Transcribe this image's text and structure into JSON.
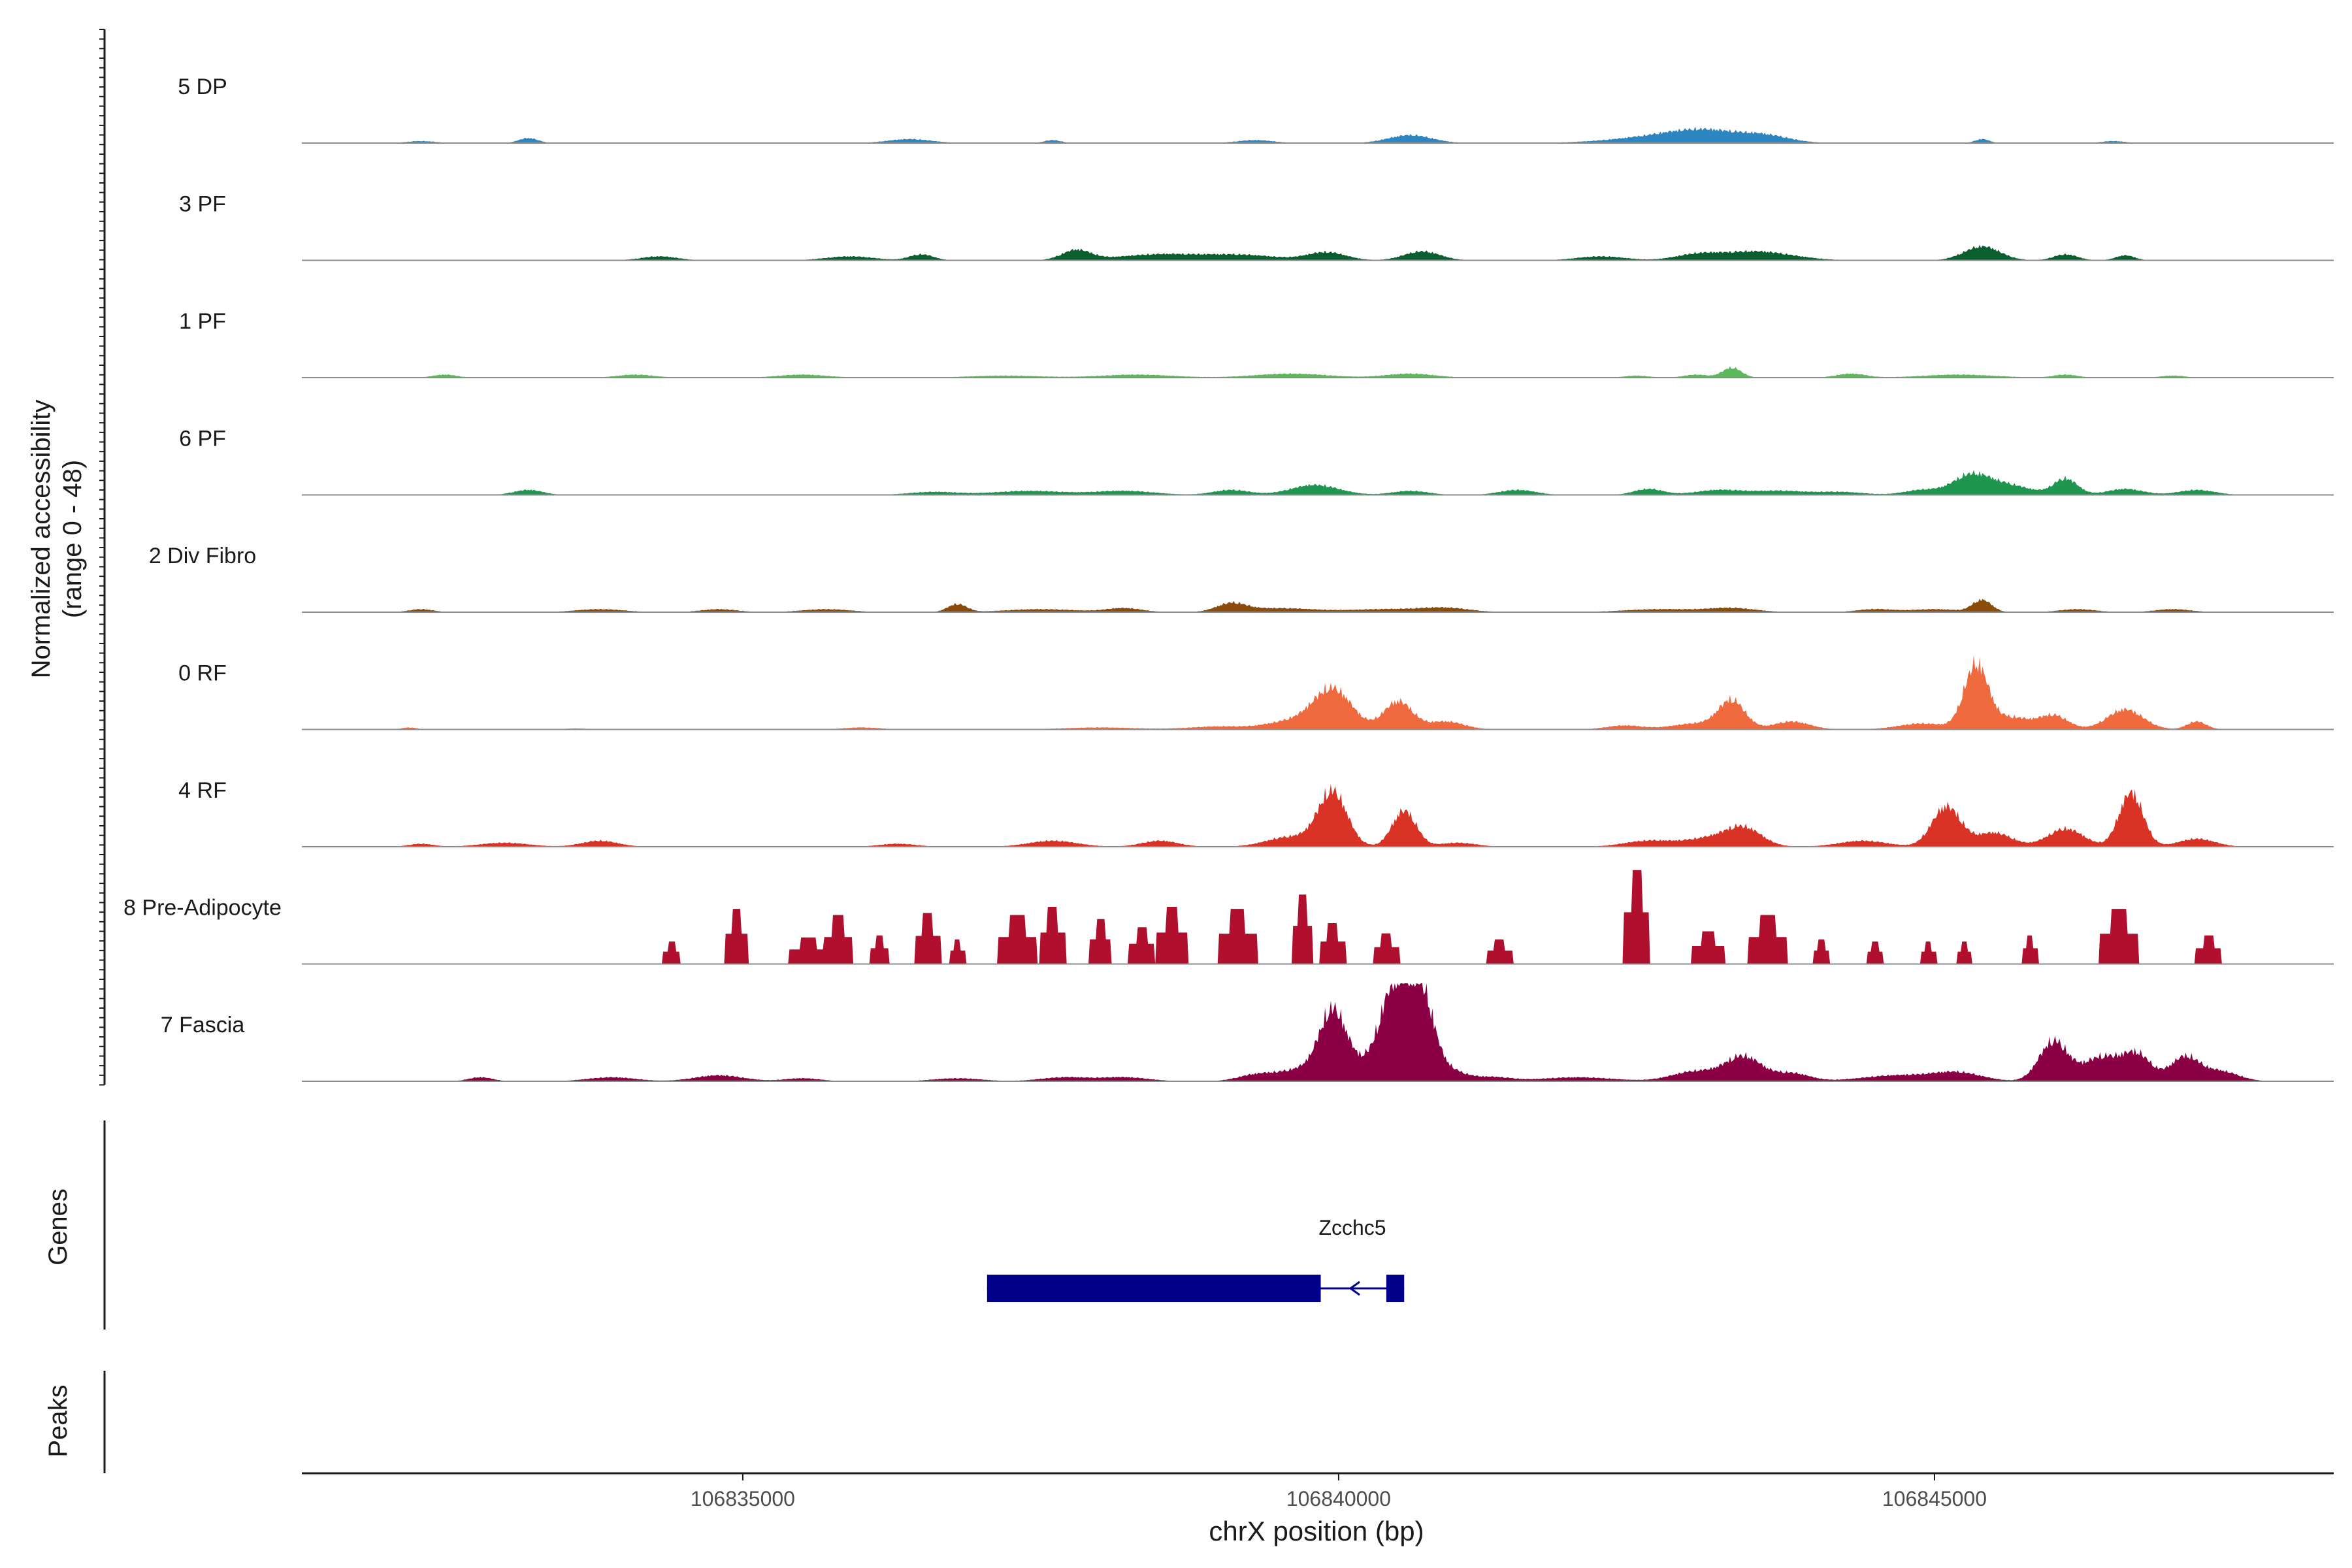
{
  "chart_data": {
    "type": "area",
    "title": "",
    "xlabel": "chrX position (bp)",
    "ylabel_line1": "Normalized accessibility",
    "ylabel_line2": "(range 0 - 48)",
    "y_range": [
      0,
      48
    ],
    "xlim": [
      106831300,
      106848350
    ],
    "x_ticks": [
      106835000,
      106840000,
      106845000
    ],
    "x_tick_labels": [
      "106835000",
      "106840000",
      "106845000"
    ],
    "genes_label": "Genes",
    "peaks_label": "Peaks",
    "gene": {
      "name": "Zcchc5",
      "strand": "-",
      "exons": [
        [
          106837050,
          106839850
        ],
        [
          106840400,
          106840550
        ]
      ],
      "color": "#00008B"
    },
    "series": [
      {
        "name": "5 DP",
        "color": "#2E86C1",
        "peaks": [
          [
            106832300,
            120,
            1
          ],
          [
            106833200,
            80,
            2.5
          ],
          [
            106836400,
            180,
            2
          ],
          [
            106837600,
            70,
            1.5
          ],
          [
            106839300,
            150,
            1.5
          ],
          [
            106840600,
            180,
            4
          ],
          [
            106842700,
            400,
            3
          ],
          [
            106843100,
            300,
            5
          ],
          [
            106843600,
            200,
            3
          ],
          [
            106845400,
            60,
            2
          ],
          [
            106846500,
            100,
            1
          ]
        ]
      },
      {
        "name": "3 PF",
        "color": "#0B5E2E",
        "peaks": [
          [
            106834300,
            150,
            2
          ],
          [
            106835900,
            200,
            2
          ],
          [
            106836500,
            100,
            3
          ],
          [
            106837800,
            120,
            5
          ],
          [
            106838500,
            350,
            3
          ],
          [
            106839200,
            300,
            2.5
          ],
          [
            106839900,
            160,
            4
          ],
          [
            106840700,
            150,
            4.5
          ],
          [
            106842200,
            200,
            2
          ],
          [
            106843000,
            180,
            2.5
          ],
          [
            106843500,
            300,
            4.5
          ],
          [
            106845400,
            150,
            7
          ],
          [
            106846100,
            100,
            3
          ],
          [
            106846600,
            80,
            2.5
          ]
        ]
      },
      {
        "name": "1 PF",
        "color": "#5DB85B",
        "peaks": [
          [
            106832500,
            100,
            1.5
          ],
          [
            106834100,
            150,
            1.5
          ],
          [
            106835500,
            200,
            1.5
          ],
          [
            106837200,
            300,
            1
          ],
          [
            106838300,
            300,
            1.5
          ],
          [
            106839600,
            300,
            2
          ],
          [
            106840600,
            200,
            2
          ],
          [
            106842500,
            100,
            1
          ],
          [
            106843000,
            100,
            1.5
          ],
          [
            106843300,
            80,
            5
          ],
          [
            106844300,
            120,
            2
          ],
          [
            106845200,
            300,
            1.5
          ],
          [
            106846100,
            100,
            1.5
          ],
          [
            106847000,
            100,
            1
          ]
        ]
      },
      {
        "name": "6 PF",
        "color": "#1E9650",
        "peaks": [
          [
            106833200,
            120,
            2.5
          ],
          [
            106836600,
            200,
            1.5
          ],
          [
            106837400,
            300,
            2
          ],
          [
            106838200,
            250,
            2
          ],
          [
            106839100,
            150,
            2.5
          ],
          [
            106839800,
            200,
            5
          ],
          [
            106840600,
            150,
            2
          ],
          [
            106841500,
            150,
            2.5
          ],
          [
            106842600,
            120,
            3
          ],
          [
            106843200,
            200,
            2.5
          ],
          [
            106843700,
            200,
            2
          ],
          [
            106844200,
            200,
            1.5
          ],
          [
            106844900,
            150,
            2.5
          ],
          [
            106845300,
            150,
            9
          ],
          [
            106845600,
            200,
            5
          ],
          [
            106846100,
            100,
            8
          ],
          [
            106846600,
            150,
            3
          ],
          [
            106847200,
            150,
            2.5
          ]
        ]
      },
      {
        "name": "2 Div Fibro",
        "color": "#8B4B0B",
        "peaks": [
          [
            106832300,
            100,
            1.5
          ],
          [
            106833800,
            200,
            1.5
          ],
          [
            106834800,
            150,
            1.5
          ],
          [
            106835700,
            200,
            1.5
          ],
          [
            106836800,
            80,
            4
          ],
          [
            106837500,
            300,
            1.5
          ],
          [
            106838200,
            150,
            2
          ],
          [
            106839100,
            120,
            4
          ],
          [
            106839500,
            300,
            2
          ],
          [
            106840400,
            300,
            1.5
          ],
          [
            106840900,
            200,
            2
          ],
          [
            106842700,
            300,
            1.5
          ],
          [
            106843300,
            200,
            2
          ],
          [
            106844500,
            150,
            1.5
          ],
          [
            106845000,
            200,
            1.5
          ],
          [
            106845400,
            80,
            6
          ],
          [
            106846200,
            150,
            1.5
          ],
          [
            106847000,
            150,
            1.5
          ]
        ]
      },
      {
        "name": "0 RF",
        "color": "#F06A40",
        "peaks": [
          [
            106832200,
            60,
            1
          ],
          [
            106833600,
            100,
            0.5
          ],
          [
            106836000,
            150,
            1
          ],
          [
            106838000,
            300,
            1
          ],
          [
            106839000,
            250,
            1.5
          ],
          [
            106839950,
            160,
            20
          ],
          [
            106839600,
            200,
            4
          ],
          [
            106840500,
            120,
            14
          ],
          [
            106840900,
            150,
            4
          ],
          [
            106842400,
            150,
            2
          ],
          [
            106843000,
            200,
            3
          ],
          [
            106843300,
            110,
            14
          ],
          [
            106843800,
            150,
            4
          ],
          [
            106844900,
            200,
            3
          ],
          [
            106845350,
            100,
            32
          ],
          [
            106845650,
            150,
            6
          ],
          [
            106846000,
            120,
            7
          ],
          [
            106846600,
            150,
            10
          ],
          [
            106847200,
            80,
            4
          ]
        ]
      },
      {
        "name": "4 RF",
        "color": "#D93326",
        "peaks": [
          [
            106832300,
            100,
            1.5
          ],
          [
            106833000,
            200,
            2
          ],
          [
            106833800,
            150,
            3
          ],
          [
            106836300,
            150,
            1.5
          ],
          [
            106837600,
            200,
            3
          ],
          [
            106838500,
            150,
            3
          ],
          [
            106839600,
            200,
            5
          ],
          [
            106839950,
            120,
            27
          ],
          [
            106840550,
            100,
            18
          ],
          [
            106841000,
            150,
            2
          ],
          [
            106842600,
            200,
            3
          ],
          [
            106843100,
            200,
            4
          ],
          [
            106843400,
            150,
            9
          ],
          [
            106844400,
            200,
            3
          ],
          [
            106845100,
            120,
            20
          ],
          [
            106845500,
            150,
            7
          ],
          [
            106846100,
            150,
            9
          ],
          [
            106846650,
            100,
            27
          ],
          [
            106847200,
            150,
            4
          ]
        ]
      },
      {
        "name": "8 Pre-Adipocyte",
        "color": "#B0102E",
        "blocky": true,
        "peaks": [
          [
            106834400,
            70,
            11
          ],
          [
            106834950,
            90,
            27
          ],
          [
            106835550,
            150,
            13
          ],
          [
            106835800,
            110,
            24
          ],
          [
            106836150,
            70,
            14
          ],
          [
            106836550,
            100,
            25
          ],
          [
            106836800,
            60,
            12
          ],
          [
            106837300,
            150,
            24
          ],
          [
            106837600,
            100,
            28
          ],
          [
            106838000,
            80,
            22
          ],
          [
            106838350,
            100,
            18
          ],
          [
            106838600,
            120,
            28
          ],
          [
            106839150,
            150,
            27
          ],
          [
            106839700,
            80,
            34
          ],
          [
            106839950,
            100,
            20
          ],
          [
            106840400,
            100,
            15
          ],
          [
            106841350,
            100,
            12
          ],
          [
            106842500,
            100,
            46
          ],
          [
            106843100,
            130,
            16
          ],
          [
            106843600,
            150,
            24
          ],
          [
            106844050,
            60,
            12
          ],
          [
            106844500,
            60,
            11
          ],
          [
            106844950,
            60,
            11
          ],
          [
            106845250,
            60,
            11
          ],
          [
            106845800,
            60,
            14
          ],
          [
            106846650,
            60,
            11
          ],
          [
            106846550,
            150,
            27
          ],
          [
            106847300,
            100,
            14
          ]
        ]
      },
      {
        "name": "7 Fascia",
        "color": "#8B0045",
        "peaks": [
          [
            106832800,
            100,
            2
          ],
          [
            106833900,
            200,
            2
          ],
          [
            106834800,
            200,
            3
          ],
          [
            106835500,
            150,
            1.5
          ],
          [
            106836800,
            200,
            1.5
          ],
          [
            106837700,
            200,
            2
          ],
          [
            106838200,
            200,
            2
          ],
          [
            106839300,
            150,
            3
          ],
          [
            106839700,
            200,
            6
          ],
          [
            106839950,
            110,
            30
          ],
          [
            106840200,
            200,
            8
          ],
          [
            106840480,
            120,
            46
          ],
          [
            106840700,
            100,
            38
          ],
          [
            106840900,
            150,
            6
          ],
          [
            106841300,
            150,
            2
          ],
          [
            106842000,
            300,
            2
          ],
          [
            106843000,
            200,
            5
          ],
          [
            106843400,
            150,
            12
          ],
          [
            106843800,
            150,
            4
          ],
          [
            106844700,
            300,
            3
          ],
          [
            106845200,
            200,
            4
          ],
          [
            106846000,
            120,
            20
          ],
          [
            106846400,
            150,
            12
          ],
          [
            106846700,
            120,
            13
          ],
          [
            106847100,
            120,
            12
          ],
          [
            106847400,
            150,
            5
          ]
        ]
      }
    ]
  }
}
